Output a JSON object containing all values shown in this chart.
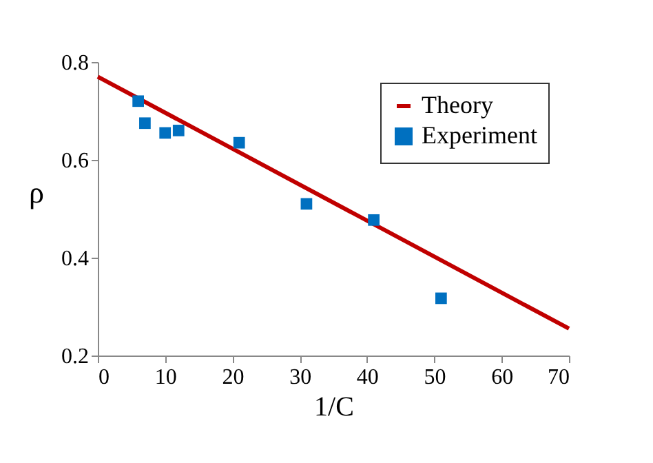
{
  "chart_data": {
    "type": "scatter",
    "xlabel": "1/C",
    "ylabel": "ρ",
    "xlim": [
      0,
      70
    ],
    "ylim": [
      0.2,
      0.8
    ],
    "xticks": [
      0,
      10,
      20,
      30,
      40,
      50,
      60,
      70
    ],
    "yticks": [
      {
        "value": 0.2,
        "label": "0.2"
      },
      {
        "value": 0.4,
        "label": "0.4"
      },
      {
        "value": 0.6,
        "label": "0.6"
      },
      {
        "value": 0.8,
        "label": "0.8"
      }
    ],
    "legend": "top right",
    "grid": false,
    "series": [
      {
        "name": "Theory",
        "type": "line",
        "color": "#c00000",
        "x": [
          0,
          70
        ],
        "values": [
          0.77,
          0.255
        ]
      },
      {
        "name": "Experiment",
        "marker": "square",
        "color": "#0070c0",
        "x": [
          6,
          7,
          10,
          12,
          21,
          31,
          41,
          51
        ],
        "values": [
          0.72,
          0.675,
          0.655,
          0.66,
          0.635,
          0.51,
          0.477,
          0.317
        ]
      }
    ]
  }
}
